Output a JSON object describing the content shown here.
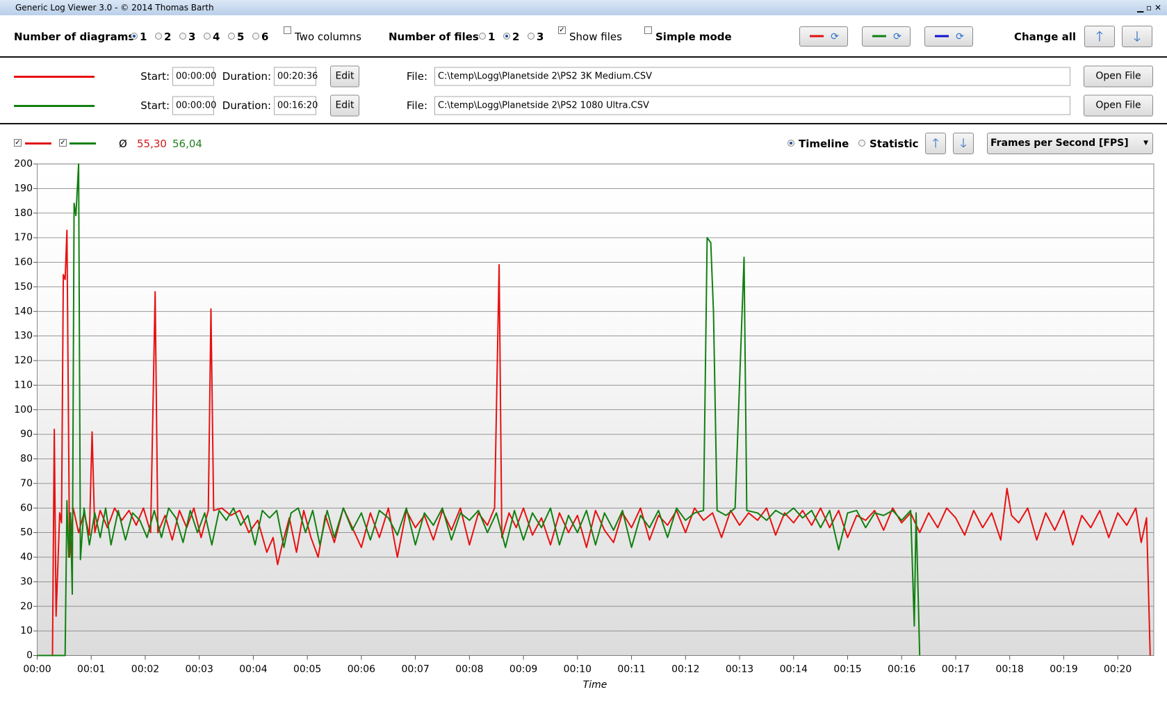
{
  "window": {
    "title": "Generic Log Viewer 3.0 - © 2014 Thomas Barth"
  },
  "toolbar": {
    "diagrams_label": "Number of diagrams",
    "diagram_options": [
      "1",
      "2",
      "3",
      "4",
      "5",
      "6"
    ],
    "two_columns": "Two columns",
    "files_label": "Number of files",
    "file_options": [
      "1",
      "2",
      "3"
    ],
    "show_files": "Show files",
    "simple_mode": "Simple mode",
    "change_all": "Change all"
  },
  "files": [
    {
      "start_label": "Start:",
      "start": "00:00:00",
      "duration_label": "Duration:",
      "duration": "00:20:36",
      "edit": "Edit",
      "file_label": "File:",
      "path": "C:\\temp\\Logg\\Planetside 2\\PS2 3K Medium.CSV",
      "open": "Open File"
    },
    {
      "start_label": "Start:",
      "start": "00:00:00",
      "duration_label": "Duration:",
      "duration": "00:16:20",
      "edit": "Edit",
      "file_label": "File:",
      "path": "C:\\temp\\Logg\\Planetside 2\\PS2 1080 Ultra.CSV",
      "open": "Open File"
    }
  ],
  "chart_controls": {
    "avg_symbol": "Ø",
    "averages": [
      "55,30",
      "56,04"
    ],
    "timeline": "Timeline",
    "statistic": "Statistic",
    "metric": "Frames per Second [FPS]"
  },
  "chart_data": {
    "type": "line",
    "x_label": "Time",
    "xlim": [
      0,
      1240
    ],
    "ylim": [
      0,
      200
    ],
    "grid": true,
    "yticks": [
      0,
      10,
      20,
      30,
      40,
      50,
      60,
      70,
      80,
      90,
      100,
      110,
      120,
      130,
      140,
      150,
      160,
      170,
      180,
      190,
      200
    ],
    "xticks": [
      {
        "value": 0,
        "label": "00:00"
      },
      {
        "value": 60,
        "label": "00:01"
      },
      {
        "value": 120,
        "label": "00:02"
      },
      {
        "value": 180,
        "label": "00:03"
      },
      {
        "value": 240,
        "label": "00:04"
      },
      {
        "value": 300,
        "label": "00:05"
      },
      {
        "value": 360,
        "label": "00:06"
      },
      {
        "value": 420,
        "label": "00:07"
      },
      {
        "value": 480,
        "label": "00:08"
      },
      {
        "value": 540,
        "label": "00:09"
      },
      {
        "value": 600,
        "label": "00:10"
      },
      {
        "value": 660,
        "label": "00:11"
      },
      {
        "value": 720,
        "label": "00:12"
      },
      {
        "value": 780,
        "label": "00:13"
      },
      {
        "value": 840,
        "label": "00:14"
      },
      {
        "value": 900,
        "label": "00:15"
      },
      {
        "value": 960,
        "label": "00:16"
      },
      {
        "value": 1020,
        "label": "00:17"
      },
      {
        "value": 1080,
        "label": "00:18"
      },
      {
        "value": 1140,
        "label": "00:19"
      },
      {
        "value": 1200,
        "label": "00:20"
      }
    ],
    "series": [
      {
        "color": "#e81010",
        "x": [
          0,
          17,
          19,
          21,
          25,
          27,
          29,
          31,
          33,
          36,
          40,
          46,
          52,
          58,
          61,
          64,
          70,
          78,
          86,
          94,
          102,
          110,
          118,
          126,
          131,
          134,
          142,
          150,
          158,
          166,
          174,
          182,
          190,
          193,
          196,
          205,
          215,
          225,
          235,
          245,
          255,
          262,
          267,
          272,
          280,
          288,
          296,
          304,
          312,
          320,
          330,
          340,
          350,
          360,
          370,
          380,
          390,
          400,
          410,
          420,
          430,
          440,
          450,
          460,
          470,
          480,
          490,
          500,
          508,
          513,
          516,
          524,
          532,
          540,
          550,
          560,
          570,
          580,
          590,
          600,
          610,
          620,
          630,
          640,
          650,
          660,
          670,
          680,
          690,
          700,
          710,
          720,
          730,
          740,
          750,
          760,
          770,
          780,
          790,
          800,
          810,
          820,
          830,
          840,
          850,
          860,
          870,
          880,
          890,
          900,
          910,
          920,
          930,
          940,
          950,
          960,
          970,
          980,
          990,
          1000,
          1010,
          1020,
          1030,
          1040,
          1050,
          1060,
          1070,
          1077,
          1082,
          1090,
          1100,
          1110,
          1120,
          1130,
          1140,
          1150,
          1160,
          1170,
          1180,
          1190,
          1200,
          1210,
          1220,
          1226,
          1232,
          1236
        ],
        "values": [
          0,
          0,
          92,
          16,
          58,
          54,
          155,
          153,
          173,
          40,
          60,
          50,
          58,
          49,
          91,
          50,
          59,
          52,
          60,
          55,
          59,
          53,
          60,
          50,
          148,
          50,
          57,
          47,
          59,
          52,
          60,
          48,
          59,
          141,
          59,
          60,
          57,
          59,
          50,
          55,
          42,
          48,
          37,
          45,
          56,
          42,
          59,
          48,
          40,
          57,
          46,
          60,
          52,
          44,
          58,
          48,
          60,
          40,
          59,
          52,
          57,
          47,
          59,
          51,
          60,
          45,
          58,
          53,
          60,
          159,
          48,
          58,
          52,
          60,
          49,
          56,
          45,
          58,
          50,
          57,
          44,
          59,
          51,
          46,
          58,
          52,
          60,
          47,
          57,
          53,
          59,
          50,
          60,
          55,
          58,
          48,
          59,
          53,
          58,
          55,
          60,
          49,
          58,
          54,
          59,
          53,
          60,
          52,
          59,
          48,
          57,
          55,
          59,
          51,
          60,
          54,
          58,
          50,
          58,
          52,
          60,
          56,
          49,
          59,
          52,
          58,
          47,
          68,
          57,
          54,
          60,
          47,
          58,
          51,
          59,
          45,
          57,
          52,
          59,
          48,
          58,
          53,
          60,
          46,
          56,
          0
        ]
      },
      {
        "color": "#108010",
        "x": [
          0,
          31,
          33,
          35,
          37,
          39,
          41,
          43,
          46,
          48,
          52,
          58,
          64,
          70,
          76,
          82,
          90,
          98,
          106,
          114,
          122,
          130,
          138,
          146,
          154,
          162,
          170,
          178,
          186,
          194,
          202,
          210,
          218,
          226,
          234,
          242,
          250,
          258,
          266,
          274,
          282,
          290,
          298,
          306,
          314,
          322,
          330,
          340,
          350,
          360,
          370,
          380,
          390,
          400,
          410,
          420,
          430,
          440,
          450,
          460,
          470,
          480,
          490,
          500,
          510,
          520,
          530,
          540,
          550,
          560,
          570,
          580,
          590,
          600,
          610,
          620,
          630,
          640,
          650,
          660,
          670,
          680,
          690,
          700,
          710,
          720,
          730,
          740,
          744,
          748,
          751,
          755,
          765,
          775,
          785,
          788,
          800,
          810,
          820,
          830,
          840,
          850,
          860,
          870,
          880,
          890,
          900,
          910,
          920,
          930,
          940,
          950,
          960,
          970,
          974,
          976,
          980
        ],
        "values": [
          0,
          0,
          63,
          40,
          58,
          25,
          184,
          179,
          200,
          39,
          60,
          45,
          58,
          48,
          60,
          45,
          59,
          47,
          58,
          55,
          48,
          59,
          48,
          60,
          56,
          46,
          59,
          50,
          58,
          45,
          59,
          55,
          60,
          53,
          57,
          45,
          59,
          56,
          59,
          44,
          58,
          60,
          50,
          59,
          45,
          59,
          48,
          60,
          51,
          58,
          47,
          59,
          56,
          49,
          60,
          45,
          58,
          53,
          60,
          47,
          58,
          55,
          59,
          50,
          58,
          44,
          59,
          47,
          58,
          52,
          60,
          45,
          57,
          50,
          59,
          45,
          58,
          51,
          59,
          44,
          57,
          52,
          59,
          48,
          60,
          55,
          58,
          59,
          170,
          168,
          140,
          59,
          57,
          60,
          162,
          59,
          58,
          55,
          59,
          57,
          60,
          56,
          59,
          52,
          59,
          43,
          58,
          59,
          52,
          58,
          57,
          59,
          55,
          59,
          12,
          58,
          0
        ]
      }
    ]
  }
}
